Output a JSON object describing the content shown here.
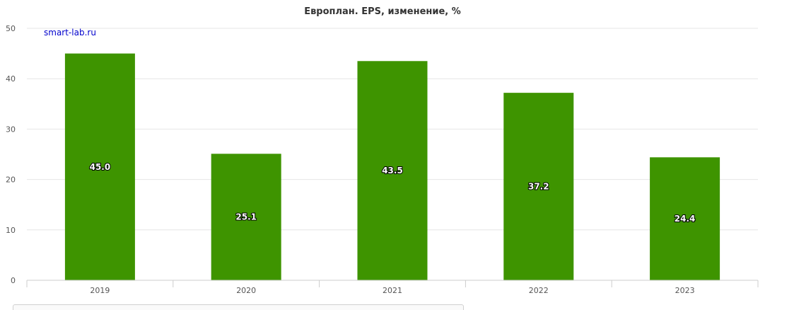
{
  "chart_data": {
    "type": "bar",
    "title": "Европлан. EPS, изменение, %",
    "watermark": "smart-lab.ru",
    "categories": [
      "2019",
      "2020",
      "2021",
      "2022",
      "2023"
    ],
    "values": [
      45.0,
      25.1,
      43.5,
      37.2,
      24.4
    ],
    "value_labels": [
      "45.0",
      "25.1",
      "43.5",
      "37.2",
      "24.4"
    ],
    "yticks": [
      0,
      10,
      20,
      30,
      40,
      50
    ],
    "ylim": [
      0,
      50
    ],
    "xlabel": "",
    "ylabel": "",
    "grid": true,
    "legend": "none",
    "colors": {
      "bar": "#3e9400",
      "grid": "#e6e6e6",
      "axis": "#cccccc",
      "title": "#333333",
      "watermark": "#0000cc"
    }
  }
}
